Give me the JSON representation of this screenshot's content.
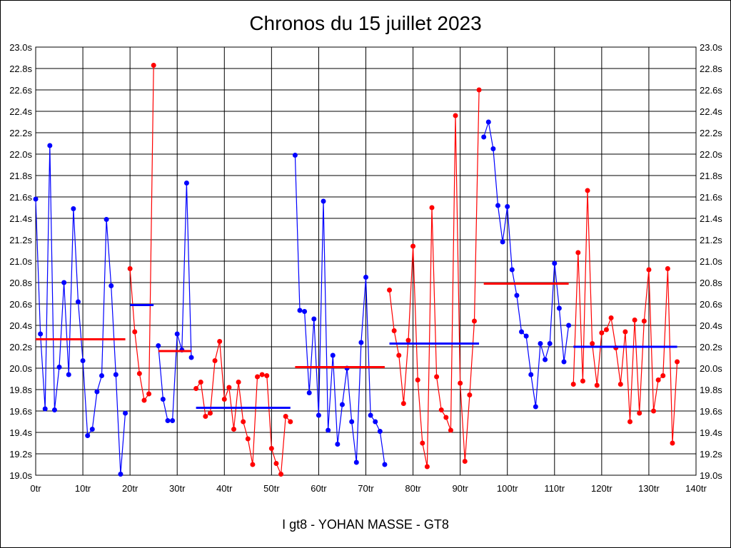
{
  "chart_data": {
    "type": "line",
    "title": "Chronos du 15 juillet 2023",
    "footer": "I gt8 - YOHAN MASSE - GT8",
    "xlim": [
      0,
      140
    ],
    "ylim": [
      19.0,
      23.0
    ],
    "grid": true,
    "x_ticks": [
      "0tr",
      "10tr",
      "20tr",
      "30tr",
      "40tr",
      "50tr",
      "60tr",
      "70tr",
      "80tr",
      "90tr",
      "100tr",
      "110tr",
      "120tr",
      "130tr",
      "140tr"
    ],
    "y_ticks": [
      "19.0s",
      "19.2s",
      "19.4s",
      "19.6s",
      "19.8s",
      "20.0s",
      "20.2s",
      "20.4s",
      "20.6s",
      "20.8s",
      "21.0s",
      "21.2s",
      "21.4s",
      "21.6s",
      "21.8s",
      "22.0s",
      "22.2s",
      "22.4s",
      "22.6s",
      "22.8s",
      "23.0s"
    ],
    "colors": {
      "blue": "#0000ff",
      "red": "#ff0000"
    },
    "series": [
      {
        "name": "stint-1",
        "color": "blue",
        "start_lap": 0,
        "values": [
          21.58,
          20.32,
          19.62,
          22.08,
          19.61,
          20.01,
          20.8,
          19.94,
          21.49,
          20.62,
          20.07,
          19.37,
          19.43,
          19.78,
          19.93,
          21.39,
          20.77,
          19.94,
          19.01,
          19.58
        ],
        "mean": 20.27
      },
      {
        "name": "stint-2",
        "color": "red",
        "start_lap": 20,
        "values": [
          20.93,
          20.34,
          19.95,
          19.7,
          19.76,
          22.83
        ],
        "mean": 20.59
      },
      {
        "name": "stint-3",
        "color": "blue",
        "start_lap": 26,
        "values": [
          20.21,
          19.71,
          19.51,
          19.51,
          20.32,
          20.17,
          21.73,
          20.1
        ],
        "mean": 20.16
      },
      {
        "name": "stint-4",
        "color": "red",
        "start_lap": 34,
        "values": [
          19.81,
          19.87,
          19.55,
          19.58,
          20.07,
          20.25,
          19.71,
          19.82,
          19.43,
          19.87,
          19.5,
          19.34,
          19.1,
          19.92,
          19.94,
          19.93,
          19.25,
          19.11,
          19.01,
          19.55,
          19.5
        ],
        "mean": 19.63
      },
      {
        "name": "stint-5",
        "color": "blue",
        "start_lap": 55,
        "values": [
          21.99,
          20.54,
          20.53,
          19.77,
          20.46,
          19.56,
          21.56,
          19.42,
          20.12,
          19.29,
          19.66,
          20.0,
          19.5,
          19.12,
          20.24,
          20.85,
          19.56,
          19.5,
          19.41,
          19.1
        ],
        "mean": 20.01
      },
      {
        "name": "stint-6",
        "color": "red",
        "start_lap": 75,
        "values": [
          20.73,
          20.35,
          20.12,
          19.67,
          20.26,
          21.14,
          19.89,
          19.3,
          19.08,
          21.5,
          19.92,
          19.61,
          19.54,
          19.42,
          22.36,
          19.86,
          19.13,
          19.75,
          20.44,
          22.6
        ],
        "mean": 20.23
      },
      {
        "name": "stint-7",
        "color": "blue",
        "start_lap": 95,
        "values": [
          22.16,
          22.3,
          22.05,
          21.52,
          21.18,
          21.51,
          20.92,
          20.68,
          20.34,
          20.3,
          19.94,
          19.64,
          20.23,
          20.08,
          20.23,
          20.98,
          20.56,
          20.06,
          20.4
        ],
        "mean": 20.79
      },
      {
        "name": "stint-8",
        "color": "red",
        "start_lap": 114,
        "values": [
          19.85,
          21.08,
          19.88,
          21.66,
          20.23,
          19.84,
          20.33,
          20.36,
          20.47,
          20.19,
          19.85,
          20.34,
          19.5,
          20.45,
          19.58,
          20.44,
          20.92,
          19.6,
          19.89,
          19.93,
          20.93,
          19.3,
          20.06
        ],
        "mean": 20.2
      }
    ]
  }
}
